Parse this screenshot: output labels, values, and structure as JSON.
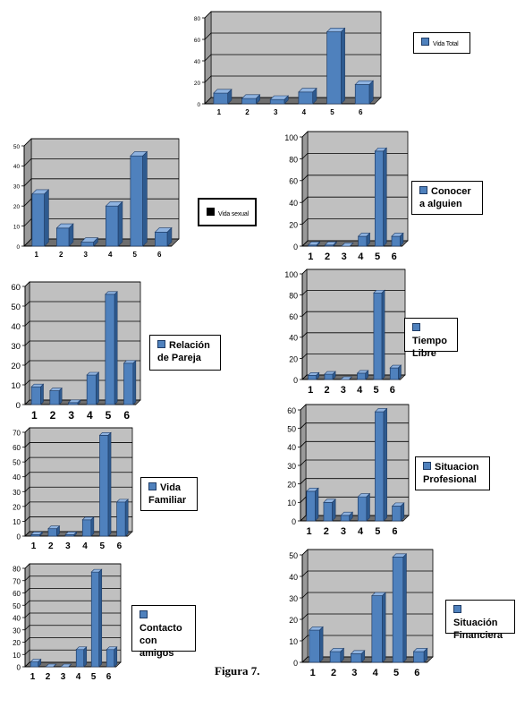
{
  "figure_caption": "Figura 7.",
  "colors": {
    "bar_front": "#4f81bd",
    "bar_top": "#8fb3e0",
    "bar_side": "#2e5a8f",
    "plot_bg": "#c0c0c0",
    "wall": "#9a9a9a",
    "grid": "#000000"
  },
  "chart_data": [
    {
      "type": "bar",
      "categories": [
        "1",
        "2",
        "3",
        "4",
        "5",
        "6"
      ],
      "values": [
        10,
        5,
        4,
        11,
        67,
        18
      ],
      "legend": "Vida Total",
      "ylim": [
        0,
        80
      ],
      "yticks": [
        0,
        20,
        40,
        60,
        80
      ]
    },
    {
      "type": "bar",
      "categories": [
        "1",
        "2",
        "3",
        "4",
        "5",
        "6"
      ],
      "values": [
        26,
        9,
        2,
        20,
        45,
        7
      ],
      "legend": "Vida sexual",
      "ylim": [
        0,
        50
      ],
      "yticks": [
        0,
        10,
        20,
        30,
        40,
        50
      ]
    },
    {
      "type": "bar",
      "categories": [
        "1",
        "2",
        "3",
        "4",
        "5",
        "6"
      ],
      "values": [
        1,
        1,
        0,
        9,
        87,
        9
      ],
      "legend": "Conocer a alguien",
      "ylim": [
        0,
        100
      ],
      "yticks": [
        0,
        20,
        40,
        60,
        80,
        100
      ]
    },
    {
      "type": "bar",
      "categories": [
        "1",
        "2",
        "3",
        "4",
        "5",
        "6"
      ],
      "values": [
        9,
        7,
        1,
        15,
        56,
        21
      ],
      "legend": "Relación de Pareja",
      "ylim": [
        0,
        60
      ],
      "yticks": [
        0,
        10,
        20,
        30,
        40,
        50,
        60
      ]
    },
    {
      "type": "bar",
      "categories": [
        "1",
        "2",
        "3",
        "4",
        "5",
        "6"
      ],
      "values": [
        4,
        5,
        0,
        6,
        82,
        11
      ],
      "legend": "Tiempo Libre",
      "ylim": [
        0,
        100
      ],
      "yticks": [
        0,
        20,
        40,
        60,
        80,
        100
      ]
    },
    {
      "type": "bar",
      "categories": [
        "1",
        "2",
        "3",
        "4",
        "5",
        "6"
      ],
      "values": [
        1,
        5,
        1,
        11,
        68,
        23
      ],
      "legend": "Vida Familiar",
      "ylim": [
        0,
        70
      ],
      "yticks": [
        0,
        10,
        20,
        30,
        40,
        50,
        60,
        70
      ]
    },
    {
      "type": "bar",
      "categories": [
        "1",
        "2",
        "3",
        "4",
        "5",
        "6"
      ],
      "values": [
        16,
        10,
        3,
        13,
        59,
        8
      ],
      "legend": "Situacion Profesional",
      "ylim": [
        0,
        60
      ],
      "yticks": [
        0,
        10,
        20,
        30,
        40,
        50,
        60
      ]
    },
    {
      "type": "bar",
      "categories": [
        "1",
        "2",
        "3",
        "4",
        "5",
        "6"
      ],
      "values": [
        4,
        0,
        0,
        14,
        77,
        14
      ],
      "legend": "Contacto con amigos",
      "ylim": [
        0,
        80
      ],
      "yticks": [
        0,
        10,
        20,
        30,
        40,
        50,
        60,
        70,
        80
      ]
    },
    {
      "type": "bar",
      "categories": [
        "1",
        "2",
        "3",
        "4",
        "5",
        "6"
      ],
      "values": [
        15,
        5,
        4,
        31,
        49,
        5
      ],
      "legend": "Situación Financiera",
      "ylim": [
        0,
        50
      ],
      "yticks": [
        0,
        10,
        20,
        30,
        40,
        50
      ]
    }
  ]
}
